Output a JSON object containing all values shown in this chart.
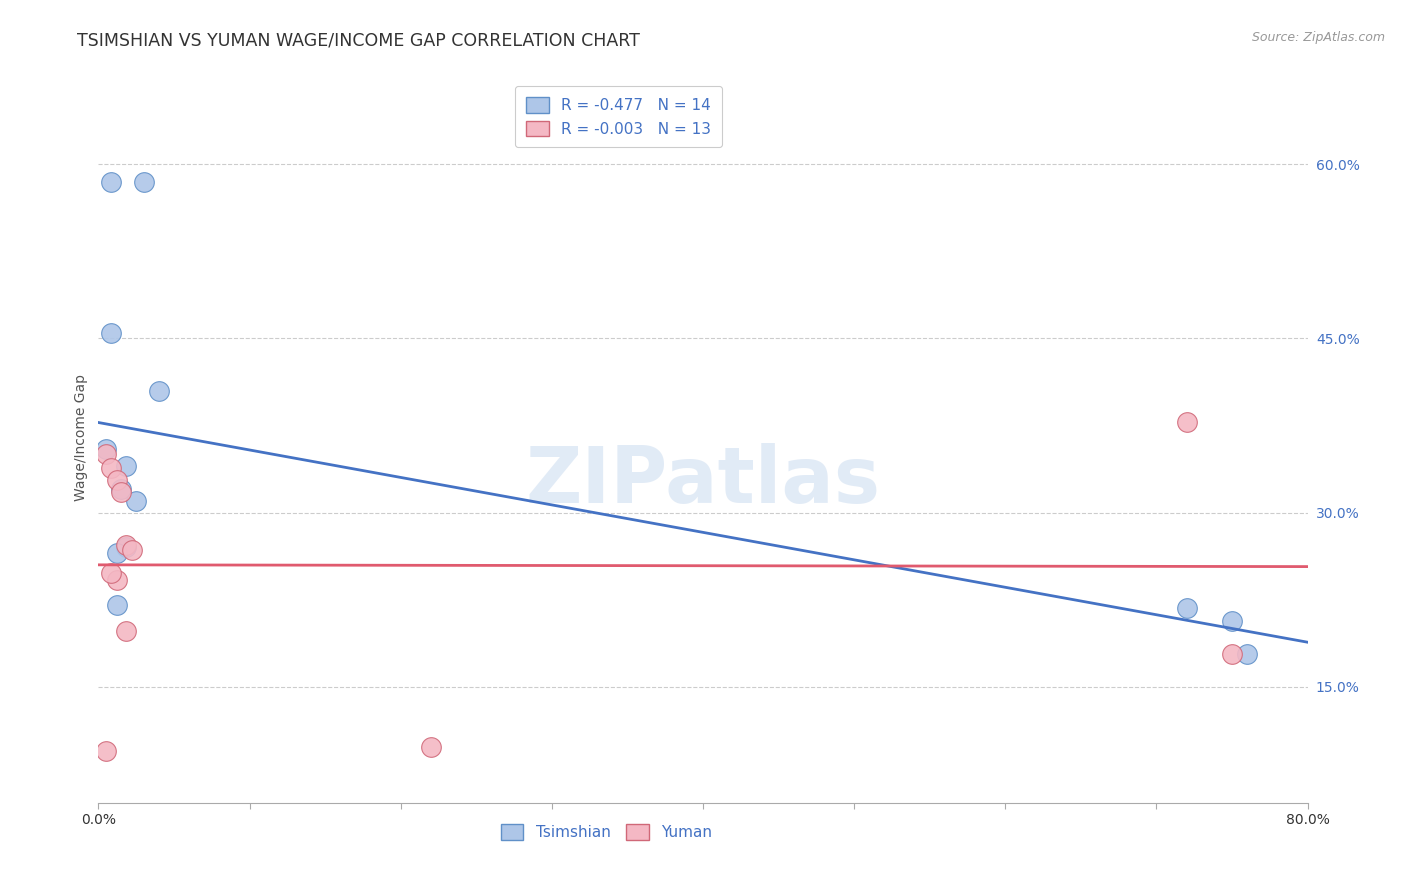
{
  "title": "TSIMSHIAN VS YUMAN WAGE/INCOME GAP CORRELATION CHART",
  "source": "Source: ZipAtlas.com",
  "ylabel": "Wage/Income Gap",
  "watermark": "ZIPatlas",
  "tsimshian_x": [
    0.008,
    0.03,
    0.04,
    0.008,
    0.005,
    0.018,
    0.015,
    0.025,
    0.018,
    0.012,
    0.012,
    0.72,
    0.75,
    0.76
  ],
  "tsimshian_y": [
    0.585,
    0.585,
    0.405,
    0.455,
    0.355,
    0.34,
    0.32,
    0.31,
    0.27,
    0.265,
    0.22,
    0.218,
    0.207,
    0.178
  ],
  "yuman_x": [
    0.005,
    0.008,
    0.012,
    0.015,
    0.018,
    0.022,
    0.012,
    0.22,
    0.008,
    0.018,
    0.005,
    0.72,
    0.75
  ],
  "yuman_y": [
    0.35,
    0.338,
    0.328,
    0.318,
    0.272,
    0.268,
    0.242,
    0.098,
    0.248,
    0.198,
    0.095,
    0.378,
    0.178
  ],
  "tsimshian_R": -0.477,
  "tsimshian_N": 14,
  "yuman_R": -0.003,
  "yuman_N": 13,
  "blue_scatter_color": "#aec6e8",
  "blue_scatter_edge": "#6090c8",
  "blue_line_color": "#4472c4",
  "pink_scatter_color": "#f4b8c4",
  "pink_scatter_edge": "#d06878",
  "pink_line_color": "#e05a6e",
  "xlim": [
    0.0,
    0.8
  ],
  "ylim": [
    0.05,
    0.68
  ],
  "ytick_positions": [
    0.15,
    0.3,
    0.45,
    0.6
  ],
  "ytick_labels": [
    "15.0%",
    "30.0%",
    "45.0%",
    "60.0%"
  ],
  "grid_color": "#cccccc",
  "background_color": "#ffffff",
  "title_fontsize": 12.5,
  "source_fontsize": 9,
  "axis_label_fontsize": 10,
  "tick_fontsize": 10,
  "legend_fontsize": 11,
  "watermark_color": "#c5d8ee",
  "watermark_alpha": 0.5
}
